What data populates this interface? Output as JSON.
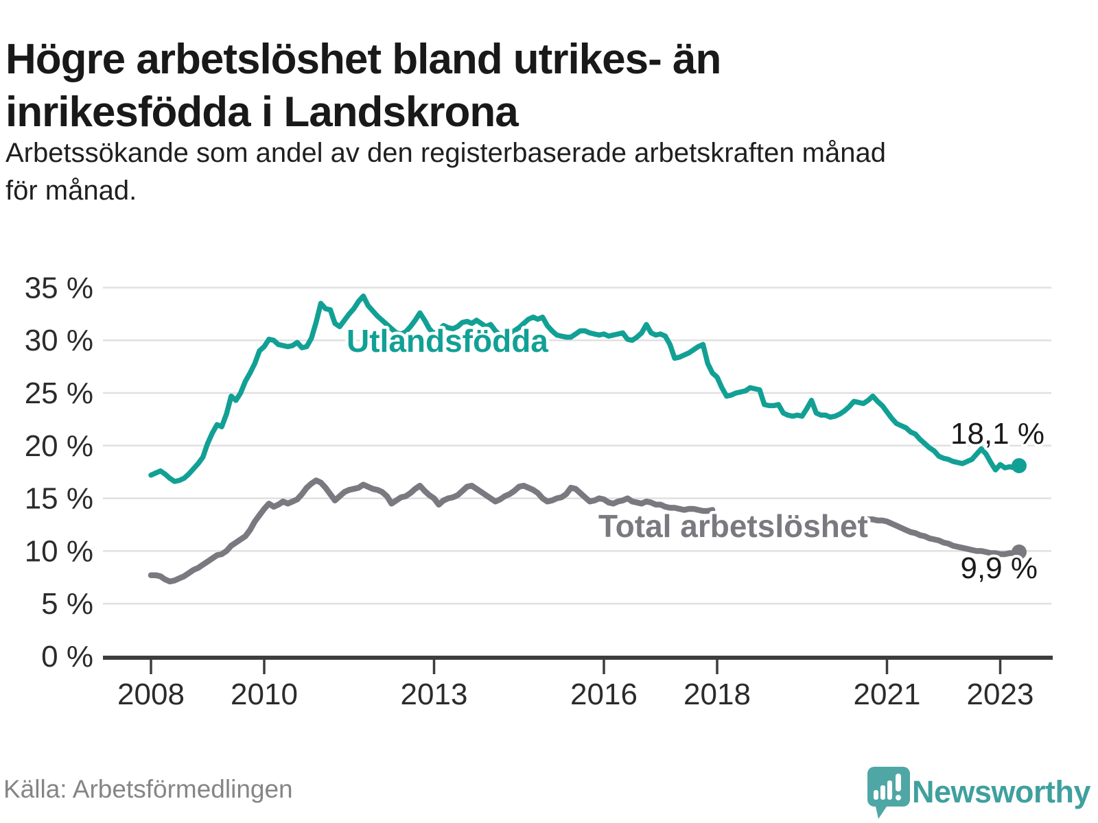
{
  "header": {
    "title_line1": "Högre arbetslöshet bland utrikes- än",
    "title_line2": "inrikesfödda i Landskrona",
    "subtitle_line1": "Arbetssökande som andel av den registerbaserade arbetskraften månad",
    "subtitle_line2": "för månad."
  },
  "footer": {
    "source": "Källa: Arbetsförmedlingen",
    "brand": "Newsworthy",
    "logo_icon": "bar-chart-speech-bubble-icon"
  },
  "colors": {
    "foreign_line": "#12A095",
    "total_line": "#7b7980",
    "grid": "#e0e0e0",
    "axis": "#3d3d3d",
    "tick_text": "#2b2b2b",
    "end_label_text": "#1a1a1a",
    "brand_teal": "#3FA09E",
    "logo_bubble": "#4FA7A5",
    "source_gray": "#858585"
  },
  "chart_data": {
    "type": "line",
    "frequency": "monthly",
    "x_start": "2008-01",
    "x_end": "2023-05",
    "ylim": [
      0,
      36.5
    ],
    "grid": "horizontal",
    "legend_position": "inline-labels",
    "yticks": [
      0,
      5,
      10,
      15,
      20,
      25,
      30,
      35
    ],
    "ytick_labels": [
      "0 %",
      "5 %",
      "10 %",
      "15 %",
      "20 %",
      "25 %",
      "30 %",
      "35 %"
    ],
    "xticks": [
      2008,
      2010,
      2013,
      2016,
      2018,
      2021,
      2023
    ],
    "xtick_labels": [
      "2008",
      "2010",
      "2013",
      "2016",
      "2018",
      "2021",
      "2023"
    ],
    "series": [
      {
        "name": "Utlandsfödda",
        "color": "#12A095",
        "end_label": "18,1 %",
        "end_value": 18.1,
        "values": [
          17.2,
          17.4,
          17.6,
          17.3,
          16.9,
          16.6,
          16.7,
          16.9,
          17.3,
          17.8,
          18.3,
          18.9,
          20.2,
          21.2,
          22.0,
          21.8,
          23.0,
          24.7,
          24.3,
          25.0,
          26.1,
          26.9,
          27.8,
          29.0,
          29.4,
          30.1,
          30.0,
          29.6,
          29.5,
          29.4,
          29.5,
          29.8,
          29.3,
          29.4,
          30.2,
          31.7,
          33.5,
          33.0,
          32.9,
          31.6,
          31.3,
          31.9,
          32.5,
          33.0,
          33.7,
          34.2,
          33.3,
          32.8,
          32.3,
          31.9,
          31.5,
          31.1,
          30.7,
          30.6,
          30.8,
          31.3,
          31.9,
          32.6,
          31.9,
          31.1,
          30.6,
          31.0,
          31.4,
          31.2,
          31.1,
          31.3,
          31.7,
          31.8,
          31.6,
          31.9,
          31.6,
          31.3,
          31.5,
          30.9,
          30.5,
          30.5,
          30.6,
          30.9,
          31.2,
          31.6,
          32.0,
          32.2,
          32.0,
          32.2,
          31.4,
          30.9,
          30.5,
          30.4,
          30.3,
          30.3,
          30.6,
          30.9,
          30.9,
          30.7,
          30.6,
          30.5,
          30.6,
          30.4,
          30.5,
          30.6,
          30.7,
          30.1,
          30.0,
          30.3,
          30.7,
          31.5,
          30.7,
          30.5,
          30.6,
          30.4,
          29.6,
          28.3,
          28.4,
          28.6,
          28.8,
          29.1,
          29.4,
          29.6,
          27.8,
          26.9,
          26.5,
          25.5,
          24.7,
          24.8,
          25.0,
          25.1,
          25.2,
          25.5,
          25.4,
          25.3,
          23.9,
          23.8,
          23.8,
          23.9,
          23.1,
          22.9,
          22.8,
          22.9,
          22.8,
          23.5,
          24.3,
          23.1,
          22.9,
          22.9,
          22.7,
          22.8,
          23.0,
          23.3,
          23.7,
          24.2,
          24.1,
          24.0,
          24.3,
          24.7,
          24.2,
          23.8,
          23.2,
          22.6,
          22.1,
          21.9,
          21.7,
          21.3,
          21.1,
          20.6,
          20.2,
          19.8,
          19.5,
          19.0,
          18.8,
          18.7,
          18.5,
          18.4,
          18.3,
          18.5,
          18.7,
          19.2,
          19.7,
          19.2,
          18.4,
          17.7,
          18.2,
          17.9,
          18.0,
          17.9,
          18.1
        ]
      },
      {
        "name": "Total arbetslöshet",
        "color": "#7b7980",
        "end_label": "9,9 %",
        "end_value": 9.9,
        "label_gap": {
          "hidden_from_index": 120,
          "hidden_to_index": 150
        },
        "values": [
          7.7,
          7.7,
          7.6,
          7.3,
          7.1,
          7.2,
          7.4,
          7.6,
          7.9,
          8.2,
          8.4,
          8.7,
          9.0,
          9.3,
          9.6,
          9.7,
          10.0,
          10.5,
          10.8,
          11.1,
          11.4,
          12.0,
          12.8,
          13.4,
          14.0,
          14.5,
          14.2,
          14.4,
          14.7,
          14.5,
          14.7,
          14.9,
          15.4,
          16.0,
          16.4,
          16.7,
          16.5,
          16.0,
          15.4,
          14.8,
          15.2,
          15.6,
          15.8,
          15.9,
          16.0,
          16.3,
          16.1,
          15.9,
          15.8,
          15.6,
          15.2,
          14.5,
          14.8,
          15.1,
          15.2,
          15.5,
          15.9,
          16.2,
          15.7,
          15.3,
          15.0,
          14.4,
          14.8,
          15.0,
          15.1,
          15.3,
          15.7,
          16.1,
          16.2,
          15.9,
          15.6,
          15.3,
          15.0,
          14.7,
          14.9,
          15.2,
          15.4,
          15.7,
          16.1,
          16.2,
          16.0,
          15.8,
          15.5,
          15.0,
          14.7,
          14.8,
          15.0,
          15.1,
          15.4,
          16.0,
          15.9,
          15.5,
          15.1,
          14.7,
          14.8,
          15.0,
          14.9,
          14.6,
          14.5,
          14.7,
          14.8,
          15.0,
          14.7,
          14.6,
          14.5,
          14.7,
          14.6,
          14.4,
          14.4,
          14.2,
          14.1,
          14.1,
          14.0,
          13.9,
          14.0,
          14.0,
          13.9,
          13.8,
          13.8,
          13.9,
          13.9,
          13.8,
          13.7,
          13.6,
          13.5,
          13.4,
          13.4,
          13.3,
          13.2,
          13.2,
          13.1,
          13.1,
          13.0,
          12.9,
          12.8,
          12.7,
          12.7,
          12.6,
          12.6,
          12.5,
          12.5,
          12.6,
          12.6,
          12.7,
          12.8,
          12.9,
          13.1,
          13.3,
          13.4,
          13.4,
          13.3,
          13.1,
          13.0,
          13.0,
          12.9,
          12.9,
          12.8,
          12.6,
          12.4,
          12.2,
          12.0,
          11.8,
          11.7,
          11.5,
          11.4,
          11.2,
          11.1,
          11.0,
          10.8,
          10.7,
          10.5,
          10.4,
          10.3,
          10.2,
          10.1,
          10.0,
          10.0,
          9.9,
          9.8,
          9.8,
          9.7,
          9.7,
          9.8,
          9.8,
          9.9
        ]
      }
    ]
  }
}
